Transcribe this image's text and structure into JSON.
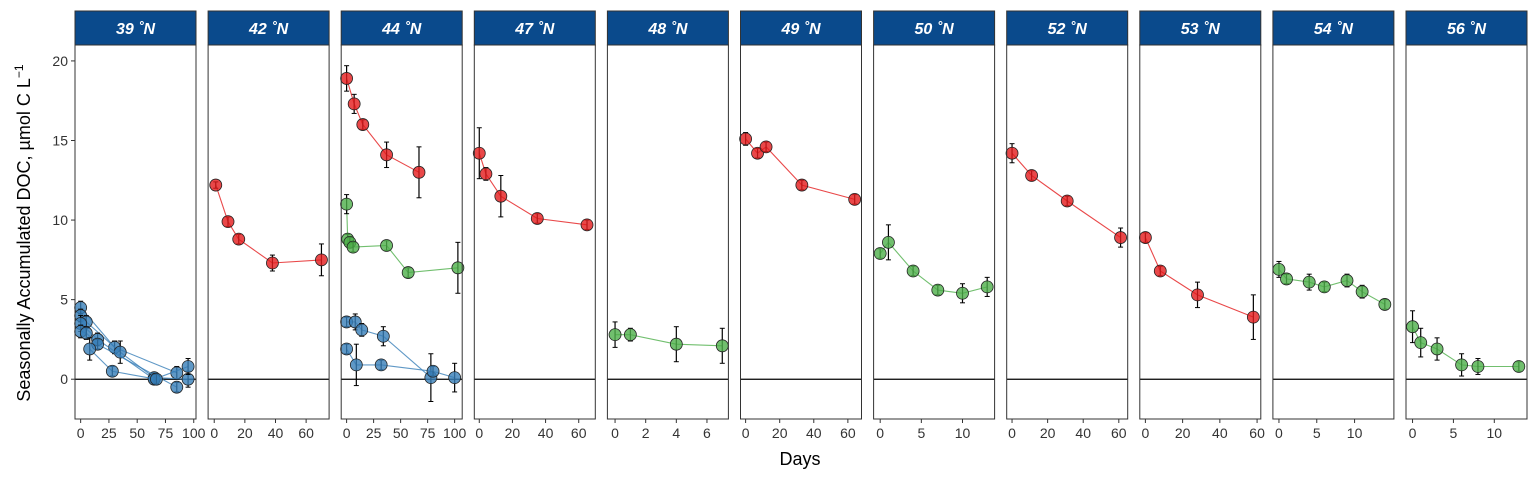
{
  "chart_data": {
    "type": "scatter",
    "ylabel_main": "Seasonally Accumulated DOC, µmol C L",
    "ylabel_sup": "−1",
    "xlabel": "Days",
    "ylim": [
      -2.5,
      21
    ],
    "y_ticks": [
      0,
      5,
      10,
      15,
      20
    ],
    "colors": {
      "red": "#E41A1C",
      "green": "#4DAF4A",
      "blue": "#377EB8",
      "strip": "#0A4A8C"
    },
    "panels": [
      {
        "label": "39 ˚N",
        "xlim": [
          -5,
          102
        ],
        "x_ticks": [
          0,
          25,
          50,
          75,
          100
        ],
        "series": [
          {
            "color": "blue",
            "points": [
              [
                0,
                4.5,
                0.4
              ],
              [
                30,
                2.0,
                0.4
              ],
              [
                85,
                0.4,
                0.4
              ]
            ]
          },
          {
            "color": "blue",
            "points": [
              [
                0,
                4.0,
                0.4
              ],
              [
                5,
                3.6,
                0.4
              ],
              [
                35,
                1.7,
                0.7
              ],
              [
                65,
                0.1,
                0.3
              ],
              [
                95,
                0.0,
                0.5
              ]
            ]
          },
          {
            "color": "blue",
            "points": [
              [
                0,
                3.5,
                0.5
              ],
              [
                15,
                2.5,
                0.4
              ],
              [
                65,
                0.0,
                0.3
              ],
              [
                95,
                0.8,
                0.5
              ]
            ]
          },
          {
            "color": "blue",
            "points": [
              [
                0,
                3.0,
                0.4
              ],
              [
                5,
                2.9,
                0.4
              ],
              [
                15,
                2.2,
                0.3
              ],
              [
                85,
                -0.5,
                0.3
              ]
            ]
          },
          {
            "color": "blue",
            "points": [
              [
                8,
                1.9,
                0.7
              ],
              [
                28,
                0.5,
                0.3
              ],
              [
                67,
                0.0,
                0.3
              ]
            ]
          }
        ]
      },
      {
        "label": "42 ˚N",
        "xlim": [
          -4,
          75
        ],
        "x_ticks": [
          0,
          20,
          40,
          60
        ],
        "series": [
          {
            "color": "red",
            "points": [
              [
                1,
                12.2,
                0.2
              ],
              [
                9,
                9.9,
                0.3
              ],
              [
                16,
                8.8,
                0.3
              ],
              [
                38,
                7.3,
                0.5
              ],
              [
                70,
                7.5,
                1.0
              ]
            ]
          }
        ]
      },
      {
        "label": "44 ˚N",
        "xlim": [
          -5,
          107
        ],
        "x_ticks": [
          0,
          25,
          50,
          75,
          100
        ],
        "series": [
          {
            "color": "red",
            "points": [
              [
                0,
                18.9,
                0.8
              ],
              [
                7,
                17.3,
                0.6
              ],
              [
                15,
                16.0,
                0.3
              ],
              [
                37,
                14.1,
                0.8
              ],
              [
                67,
                13.0,
                1.6
              ]
            ]
          },
          {
            "color": "green",
            "points": [
              [
                0,
                11.0,
                0.6
              ],
              [
                1,
                8.8,
                0.3
              ],
              [
                3,
                8.6,
                0.3
              ],
              [
                6,
                8.3,
                0.3
              ],
              [
                37,
                8.4,
                0.3
              ],
              [
                57,
                6.7,
                0.3
              ],
              [
                103,
                7.0,
                1.6
              ]
            ]
          },
          {
            "color": "blue",
            "points": [
              [
                0,
                3.6,
                0.3
              ],
              [
                8,
                3.6,
                0.5
              ],
              [
                14,
                3.1,
                0.4
              ],
              [
                34,
                2.7,
                0.6
              ],
              [
                78,
                0.1,
                1.5
              ]
            ]
          },
          {
            "color": "blue",
            "points": [
              [
                0,
                1.9,
                0.3
              ],
              [
                9,
                0.9,
                1.3
              ],
              [
                32,
                0.9,
                0.3
              ],
              [
                80,
                0.5,
                0.3
              ],
              [
                100,
                0.1,
                0.9
              ]
            ]
          }
        ]
      },
      {
        "label": "47 ˚N",
        "xlim": [
          -3,
          70
        ],
        "x_ticks": [
          0,
          20,
          40,
          60
        ],
        "series": [
          {
            "color": "red",
            "points": [
              [
                0,
                14.2,
                1.6
              ],
              [
                4,
                12.9,
                0.4
              ],
              [
                13,
                11.5,
                1.3
              ],
              [
                35,
                10.1,
                0.3
              ],
              [
                65,
                9.7,
                0.3
              ]
            ]
          }
        ]
      },
      {
        "label": "48 ˚N",
        "xlim": [
          -0.5,
          7.4
        ],
        "x_ticks": [
          0,
          2,
          4,
          6
        ],
        "series": [
          {
            "color": "green",
            "points": [
              [
                0,
                2.8,
                0.8
              ],
              [
                1,
                2.8,
                0.4
              ],
              [
                4,
                2.2,
                1.1
              ],
              [
                7,
                2.1,
                1.1
              ]
            ]
          }
        ]
      },
      {
        "label": "49 ˚N",
        "xlim": [
          -3,
          68
        ],
        "x_ticks": [
          0,
          20,
          40,
          60
        ],
        "series": [
          {
            "color": "red",
            "points": [
              [
                0,
                15.1,
                0.4
              ],
              [
                7,
                14.2,
                0.3
              ],
              [
                12,
                14.6,
                0.3
              ],
              [
                33,
                12.2,
                0.3
              ],
              [
                64,
                11.3,
                0.3
              ]
            ]
          }
        ]
      },
      {
        "label": "50 ˚N",
        "xlim": [
          -0.8,
          13.9
        ],
        "x_ticks": [
          0,
          5,
          10
        ],
        "series": [
          {
            "color": "green",
            "points": [
              [
                0,
                7.9,
                0.3
              ],
              [
                1,
                8.6,
                1.1
              ],
              [
                4,
                6.8,
                0.3
              ],
              [
                7,
                5.6,
                0.3
              ],
              [
                10,
                5.4,
                0.6
              ],
              [
                13,
                5.8,
                0.6
              ]
            ]
          }
        ]
      },
      {
        "label": "52 ˚N",
        "xlim": [
          -3,
          65
        ],
        "x_ticks": [
          0,
          20,
          40,
          60
        ],
        "series": [
          {
            "color": "red",
            "points": [
              [
                0,
                14.2,
                0.6
              ],
              [
                11,
                12.8,
                0.3
              ],
              [
                31,
                11.2,
                0.3
              ],
              [
                61,
                8.9,
                0.6
              ]
            ]
          }
        ]
      },
      {
        "label": "53 ˚N",
        "xlim": [
          -3,
          62
        ],
        "x_ticks": [
          0,
          20,
          40,
          60
        ],
        "series": [
          {
            "color": "red",
            "points": [
              [
                0,
                8.9,
                0.3
              ],
              [
                8,
                6.8,
                0.3
              ],
              [
                28,
                5.3,
                0.8
              ],
              [
                58,
                3.9,
                1.4
              ]
            ]
          }
        ]
      },
      {
        "label": "54 ˚N",
        "xlim": [
          -0.8,
          15.2
        ],
        "x_ticks": [
          0,
          5,
          10
        ],
        "series": [
          {
            "color": "green",
            "points": [
              [
                0,
                6.9,
                0.5
              ],
              [
                1,
                6.3,
                0.3
              ],
              [
                4,
                6.1,
                0.5
              ],
              [
                6,
                5.8,
                0.3
              ],
              [
                9,
                6.2,
                0.4
              ],
              [
                11,
                5.5,
                0.4
              ],
              [
                14,
                4.7,
                0.3
              ]
            ]
          }
        ]
      },
      {
        "label": "56 ˚N",
        "xlim": [
          -0.8,
          14
        ],
        "x_ticks": [
          0,
          5,
          10
        ],
        "series": [
          {
            "color": "green",
            "points": [
              [
                0,
                3.3,
                1.0
              ],
              [
                1,
                2.3,
                0.9
              ],
              [
                3,
                1.9,
                0.7
              ],
              [
                6,
                0.9,
                0.7
              ],
              [
                8,
                0.8,
                0.5
              ],
              [
                13,
                0.8,
                0.3
              ]
            ]
          }
        ]
      }
    ]
  }
}
